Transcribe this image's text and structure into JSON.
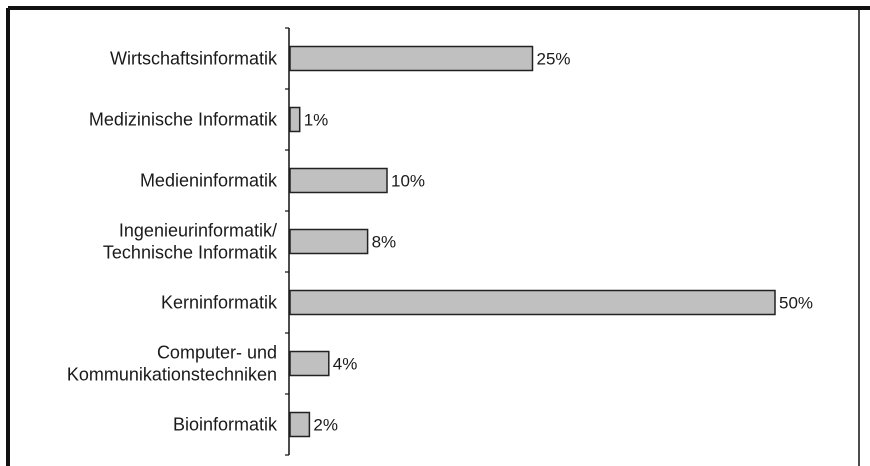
{
  "chart_data": {
    "type": "bar",
    "orientation": "horizontal",
    "categories": [
      [
        "Wirtschaftsinformatik"
      ],
      [
        "Medizinische Informatik"
      ],
      [
        "Medieninformatik"
      ],
      [
        "Ingenieurinformatik/",
        "Technische Informatik"
      ],
      [
        "Kerninformatik"
      ],
      [
        "Computer- und",
        "Kommunikationstechniken"
      ],
      [
        "Bioinformatik"
      ]
    ],
    "values": [
      25,
      1,
      10,
      8,
      50,
      4,
      2
    ],
    "value_labels": [
      "25%",
      "1%",
      "10%",
      "8%",
      "50%",
      "4%",
      "2%"
    ],
    "xlim": [
      0,
      60
    ],
    "grid": false,
    "bar_color": "#c0c0c0",
    "bar_stroke": "#222222",
    "frame_color": "#111111"
  }
}
